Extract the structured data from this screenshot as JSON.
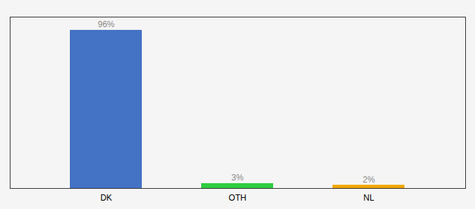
{
  "chart_data": {
    "type": "bar",
    "categories": [
      "DK",
      "OTH",
      "NL"
    ],
    "values": [
      96,
      3,
      2
    ],
    "value_labels": [
      "96%",
      "3%",
      "2%"
    ],
    "colors": [
      "#4472c4",
      "#2ecc40",
      "#f0a500"
    ],
    "ylim": [
      0,
      104
    ],
    "data_labels": true,
    "tick_labels": "x",
    "grid": false
  }
}
